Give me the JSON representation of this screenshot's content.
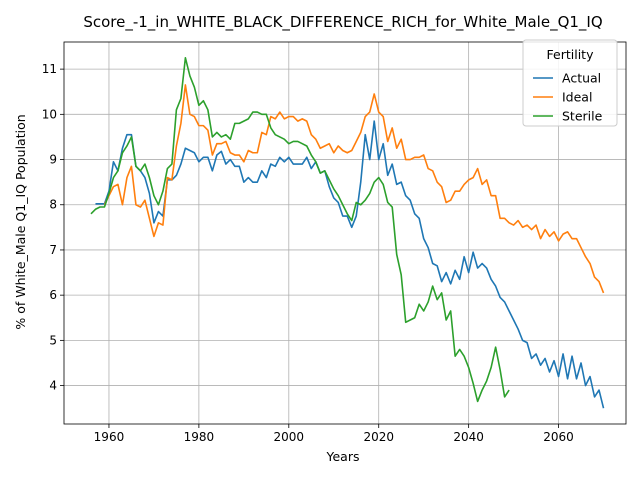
{
  "chart_data": {
    "type": "line",
    "title": "Score_-1_in_WHITE_BLACK_DIFFERENCE_RICH_for_White_Male_Q1_IQ",
    "xlabel": "Years",
    "ylabel": "% of White_Male Q1_IQ Population",
    "xlim": [
      1950,
      2075
    ],
    "ylim": [
      3.15,
      11.6
    ],
    "xticks": [
      1960,
      1980,
      2000,
      2020,
      2040,
      2060
    ],
    "yticks": [
      4,
      5,
      6,
      7,
      8,
      9,
      10,
      11
    ],
    "grid": true,
    "legend": {
      "title": "Fertility",
      "placement": "top-right"
    },
    "series": [
      {
        "name": "Actual",
        "color": "#1f77b4",
        "points": [
          [
            1957,
            8.02
          ],
          [
            1958,
            8.02
          ],
          [
            1959,
            8.02
          ],
          [
            1960,
            8.3
          ],
          [
            1961,
            8.95
          ],
          [
            1962,
            8.75
          ],
          [
            1963,
            9.25
          ],
          [
            1964,
            9.55
          ],
          [
            1965,
            9.55
          ],
          [
            1966,
            8.85
          ],
          [
            1967,
            8.75
          ],
          [
            1968,
            8.6
          ],
          [
            1969,
            8.25
          ],
          [
            1970,
            7.6
          ],
          [
            1971,
            7.85
          ],
          [
            1972,
            7.75
          ],
          [
            1973,
            8.55
          ],
          [
            1974,
            8.55
          ],
          [
            1975,
            8.65
          ],
          [
            1976,
            8.9
          ],
          [
            1977,
            9.25
          ],
          [
            1978,
            9.2
          ],
          [
            1979,
            9.15
          ],
          [
            1980,
            8.95
          ],
          [
            1981,
            9.05
          ],
          [
            1982,
            9.05
          ],
          [
            1983,
            8.75
          ],
          [
            1984,
            9.1
          ],
          [
            1985,
            9.18
          ],
          [
            1986,
            8.9
          ],
          [
            1987,
            9.0
          ],
          [
            1988,
            8.85
          ],
          [
            1989,
            8.85
          ],
          [
            1990,
            8.5
          ],
          [
            1991,
            8.6
          ],
          [
            1992,
            8.5
          ],
          [
            1993,
            8.5
          ],
          [
            1994,
            8.75
          ],
          [
            1995,
            8.6
          ],
          [
            1996,
            8.9
          ],
          [
            1997,
            8.85
          ],
          [
            1998,
            9.05
          ],
          [
            1999,
            8.95
          ],
          [
            2000,
            9.05
          ],
          [
            2001,
            8.9
          ],
          [
            2002,
            8.9
          ],
          [
            2003,
            8.9
          ],
          [
            2004,
            9.05
          ],
          [
            2005,
            8.8
          ],
          [
            2006,
            8.95
          ],
          [
            2007,
            8.7
          ],
          [
            2008,
            8.75
          ],
          [
            2009,
            8.4
          ],
          [
            2010,
            8.15
          ],
          [
            2011,
            8.05
          ],
          [
            2012,
            7.75
          ],
          [
            2013,
            7.75
          ],
          [
            2014,
            7.5
          ],
          [
            2015,
            7.75
          ],
          [
            2016,
            8.5
          ],
          [
            2017,
            9.55
          ],
          [
            2018,
            9.0
          ],
          [
            2019,
            9.85
          ],
          [
            2020,
            9.0
          ],
          [
            2021,
            9.35
          ],
          [
            2022,
            8.65
          ],
          [
            2023,
            8.9
          ],
          [
            2024,
            8.45
          ],
          [
            2025,
            8.5
          ],
          [
            2026,
            8.2
          ],
          [
            2027,
            8.1
          ],
          [
            2028,
            7.8
          ],
          [
            2029,
            7.7
          ],
          [
            2030,
            7.25
          ],
          [
            2031,
            7.05
          ],
          [
            2032,
            6.7
          ],
          [
            2033,
            6.65
          ],
          [
            2034,
            6.3
          ],
          [
            2035,
            6.5
          ],
          [
            2036,
            6.25
          ],
          [
            2037,
            6.55
          ],
          [
            2038,
            6.35
          ],
          [
            2039,
            6.85
          ],
          [
            2040,
            6.5
          ],
          [
            2041,
            6.95
          ],
          [
            2042,
            6.6
          ],
          [
            2043,
            6.7
          ],
          [
            2044,
            6.6
          ],
          [
            2045,
            6.35
          ],
          [
            2046,
            6.2
          ],
          [
            2047,
            5.95
          ],
          [
            2048,
            5.85
          ],
          [
            2049,
            5.65
          ],
          [
            2050,
            5.45
          ],
          [
            2051,
            5.25
          ],
          [
            2052,
            5.0
          ],
          [
            2053,
            4.95
          ],
          [
            2054,
            4.6
          ],
          [
            2055,
            4.7
          ],
          [
            2056,
            4.45
          ],
          [
            2057,
            4.6
          ],
          [
            2058,
            4.3
          ],
          [
            2059,
            4.55
          ],
          [
            2060,
            4.2
          ],
          [
            2061,
            4.7
          ],
          [
            2062,
            4.15
          ],
          [
            2063,
            4.65
          ],
          [
            2064,
            4.15
          ],
          [
            2065,
            4.5
          ],
          [
            2066,
            4.0
          ],
          [
            2067,
            4.2
          ],
          [
            2068,
            3.75
          ],
          [
            2069,
            3.9
          ],
          [
            2070,
            3.5
          ]
        ]
      },
      {
        "name": "Ideal",
        "color": "#ff7f0e",
        "points": [
          [
            1959,
            8.0
          ],
          [
            1960,
            8.2
          ],
          [
            1961,
            8.4
          ],
          [
            1962,
            8.45
          ],
          [
            1963,
            8.0
          ],
          [
            1964,
            8.6
          ],
          [
            1965,
            8.85
          ],
          [
            1966,
            8.0
          ],
          [
            1967,
            7.95
          ],
          [
            1968,
            8.1
          ],
          [
            1969,
            7.7
          ],
          [
            1970,
            7.3
          ],
          [
            1971,
            7.6
          ],
          [
            1972,
            7.55
          ],
          [
            1973,
            8.6
          ],
          [
            1974,
            8.55
          ],
          [
            1975,
            9.3
          ],
          [
            1976,
            9.8
          ],
          [
            1977,
            10.65
          ],
          [
            1978,
            10.0
          ],
          [
            1979,
            9.95
          ],
          [
            1980,
            9.75
          ],
          [
            1981,
            9.75
          ],
          [
            1982,
            9.65
          ],
          [
            1983,
            9.1
          ],
          [
            1984,
            9.35
          ],
          [
            1985,
            9.35
          ],
          [
            1986,
            9.4
          ],
          [
            1987,
            9.15
          ],
          [
            1988,
            9.1
          ],
          [
            1989,
            9.1
          ],
          [
            1990,
            8.95
          ],
          [
            1991,
            9.2
          ],
          [
            1992,
            9.15
          ],
          [
            1993,
            9.15
          ],
          [
            1994,
            9.6
          ],
          [
            1995,
            9.55
          ],
          [
            1996,
            9.95
          ],
          [
            1997,
            9.9
          ],
          [
            1998,
            10.05
          ],
          [
            1999,
            9.9
          ],
          [
            2000,
            9.95
          ],
          [
            2001,
            9.95
          ],
          [
            2002,
            9.85
          ],
          [
            2003,
            9.9
          ],
          [
            2004,
            9.85
          ],
          [
            2005,
            9.55
          ],
          [
            2006,
            9.45
          ],
          [
            2007,
            9.25
          ],
          [
            2008,
            9.3
          ],
          [
            2009,
            9.35
          ],
          [
            2010,
            9.15
          ],
          [
            2011,
            9.3
          ],
          [
            2012,
            9.2
          ],
          [
            2013,
            9.15
          ],
          [
            2014,
            9.2
          ],
          [
            2015,
            9.4
          ],
          [
            2016,
            9.6
          ],
          [
            2017,
            9.95
          ],
          [
            2018,
            10.05
          ],
          [
            2019,
            10.45
          ],
          [
            2020,
            10.05
          ],
          [
            2021,
            9.95
          ],
          [
            2022,
            9.4
          ],
          [
            2023,
            9.7
          ],
          [
            2024,
            9.25
          ],
          [
            2025,
            9.45
          ],
          [
            2026,
            9.0
          ],
          [
            2027,
            9.0
          ],
          [
            2028,
            9.05
          ],
          [
            2029,
            9.05
          ],
          [
            2030,
            9.1
          ],
          [
            2031,
            8.8
          ],
          [
            2032,
            8.75
          ],
          [
            2033,
            8.5
          ],
          [
            2034,
            8.4
          ],
          [
            2035,
            8.05
          ],
          [
            2036,
            8.1
          ],
          [
            2037,
            8.3
          ],
          [
            2038,
            8.3
          ],
          [
            2039,
            8.45
          ],
          [
            2040,
            8.55
          ],
          [
            2041,
            8.6
          ],
          [
            2042,
            8.8
          ],
          [
            2043,
            8.45
          ],
          [
            2044,
            8.55
          ],
          [
            2045,
            8.2
          ],
          [
            2046,
            8.2
          ],
          [
            2047,
            7.7
          ],
          [
            2048,
            7.7
          ],
          [
            2049,
            7.6
          ],
          [
            2050,
            7.55
          ],
          [
            2051,
            7.65
          ],
          [
            2052,
            7.5
          ],
          [
            2053,
            7.55
          ],
          [
            2054,
            7.45
          ],
          [
            2055,
            7.55
          ],
          [
            2056,
            7.25
          ],
          [
            2057,
            7.45
          ],
          [
            2058,
            7.3
          ],
          [
            2059,
            7.4
          ],
          [
            2060,
            7.2
          ],
          [
            2061,
            7.35
          ],
          [
            2062,
            7.4
          ],
          [
            2063,
            7.25
          ],
          [
            2064,
            7.25
          ],
          [
            2065,
            7.05
          ],
          [
            2066,
            6.85
          ],
          [
            2067,
            6.7
          ],
          [
            2068,
            6.4
          ],
          [
            2069,
            6.3
          ],
          [
            2070,
            6.05
          ]
        ]
      },
      {
        "name": "Sterile",
        "color": "#2ca02c",
        "points": [
          [
            1956,
            7.8
          ],
          [
            1957,
            7.9
          ],
          [
            1958,
            7.95
          ],
          [
            1959,
            7.95
          ],
          [
            1960,
            8.25
          ],
          [
            1961,
            8.6
          ],
          [
            1962,
            8.75
          ],
          [
            1963,
            9.15
          ],
          [
            1964,
            9.3
          ],
          [
            1965,
            9.5
          ],
          [
            1966,
            8.85
          ],
          [
            1967,
            8.75
          ],
          [
            1968,
            8.9
          ],
          [
            1969,
            8.6
          ],
          [
            1970,
            8.2
          ],
          [
            1971,
            8.0
          ],
          [
            1972,
            8.3
          ],
          [
            1973,
            8.8
          ],
          [
            1974,
            8.9
          ],
          [
            1975,
            10.1
          ],
          [
            1976,
            10.35
          ],
          [
            1977,
            11.25
          ],
          [
            1978,
            10.85
          ],
          [
            1979,
            10.6
          ],
          [
            1980,
            10.2
          ],
          [
            1981,
            10.3
          ],
          [
            1982,
            10.1
          ],
          [
            1983,
            9.5
          ],
          [
            1984,
            9.6
          ],
          [
            1985,
            9.5
          ],
          [
            1986,
            9.55
          ],
          [
            1987,
            9.45
          ],
          [
            1988,
            9.8
          ],
          [
            1989,
            9.8
          ],
          [
            1990,
            9.85
          ],
          [
            1991,
            9.9
          ],
          [
            1992,
            10.05
          ],
          [
            1993,
            10.05
          ],
          [
            1994,
            10.0
          ],
          [
            1995,
            10.0
          ],
          [
            1996,
            9.7
          ],
          [
            1997,
            9.55
          ],
          [
            1998,
            9.5
          ],
          [
            1999,
            9.45
          ],
          [
            2000,
            9.35
          ],
          [
            2001,
            9.4
          ],
          [
            2002,
            9.4
          ],
          [
            2003,
            9.35
          ],
          [
            2004,
            9.3
          ],
          [
            2005,
            9.1
          ],
          [
            2006,
            8.95
          ],
          [
            2007,
            8.7
          ],
          [
            2008,
            8.75
          ],
          [
            2009,
            8.55
          ],
          [
            2010,
            8.35
          ],
          [
            2011,
            8.2
          ],
          [
            2012,
            8.0
          ],
          [
            2013,
            7.8
          ],
          [
            2014,
            7.65
          ],
          [
            2015,
            8.05
          ],
          [
            2016,
            8.0
          ],
          [
            2017,
            8.1
          ],
          [
            2018,
            8.25
          ],
          [
            2019,
            8.5
          ],
          [
            2020,
            8.6
          ],
          [
            2021,
            8.45
          ],
          [
            2022,
            8.05
          ],
          [
            2023,
            7.95
          ],
          [
            2024,
            6.9
          ],
          [
            2025,
            6.45
          ],
          [
            2026,
            5.4
          ],
          [
            2027,
            5.45
          ],
          [
            2028,
            5.5
          ],
          [
            2029,
            5.8
          ],
          [
            2030,
            5.65
          ],
          [
            2031,
            5.85
          ],
          [
            2032,
            6.2
          ],
          [
            2033,
            5.9
          ],
          [
            2034,
            6.05
          ],
          [
            2035,
            5.45
          ],
          [
            2036,
            5.65
          ],
          [
            2037,
            4.65
          ],
          [
            2038,
            4.8
          ],
          [
            2039,
            4.65
          ],
          [
            2040,
            4.4
          ],
          [
            2041,
            4.05
          ],
          [
            2042,
            3.65
          ],
          [
            2043,
            3.9
          ],
          [
            2044,
            4.1
          ],
          [
            2045,
            4.4
          ],
          [
            2046,
            4.85
          ],
          [
            2047,
            4.35
          ],
          [
            2048,
            3.75
          ],
          [
            2049,
            3.9
          ]
        ]
      }
    ]
  }
}
